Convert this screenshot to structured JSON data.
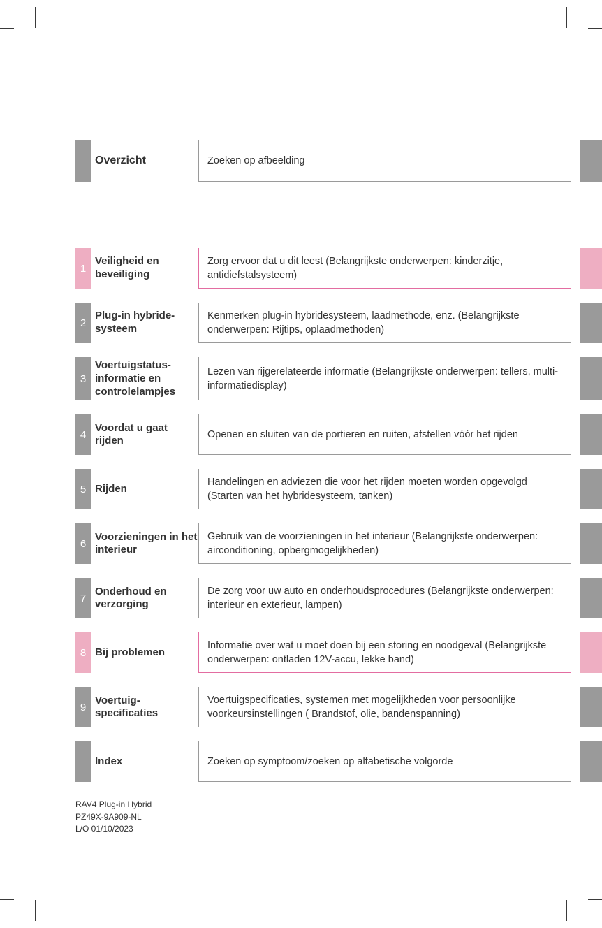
{
  "colors": {
    "gray": "#9a9a9a",
    "pink": "#eeaec2",
    "pink_border": "#e36da1",
    "text": "#333333",
    "background": "#ffffff"
  },
  "header_row": {
    "title": "Overzicht",
    "description": "Zoeken op afbeelding"
  },
  "sections": [
    {
      "num": "1",
      "color": "pink",
      "title": "Veiligheid en beveiliging",
      "description": "Zorg ervoor dat u dit leest (Belangrijkste onderwerpen: kinderzitje, antidiefstalsysteem)"
    },
    {
      "num": "2",
      "color": "gray",
      "title": "Plug-in hybride­systeem",
      "description": "Kenmerken plug-in hybridesysteem, laadmethode, enz. (Belangrijkste onderwerpen: Rijtips, oplaadmethoden)"
    },
    {
      "num": "3",
      "color": "gray",
      "title": "Voertuigstatus-informatie en controlelampjes",
      "description": "Lezen van rijgerelateerde informatie (Belangrijkste onderwerpen: tellers, multi-informatiedisplay)"
    },
    {
      "num": "4",
      "color": "gray",
      "title": "Voordat u gaat rijden",
      "description": "Openen en sluiten van de portieren en ruiten, afstellen vóór het rijden"
    },
    {
      "num": "5",
      "color": "gray",
      "title": "Rijden",
      "description": "Handelingen en adviezen die voor het rijden moeten worden opgevolgd (Starten van het hybridesysteem, tanken)"
    },
    {
      "num": "6",
      "color": "gray",
      "title": "Voorzieningen in het interieur",
      "description": "Gebruik van de voorzieningen in het interieur (Belangrijkste onderwerpen: airconditioning, opbergmogelijkheden)"
    },
    {
      "num": "7",
      "color": "gray",
      "title": "Onderhoud en verzorging",
      "description": "De zorg voor uw auto en onderhoudsprocedures (Belangrijkste onderwerpen: interieur en exterieur, lampen)"
    },
    {
      "num": "8",
      "color": "pink",
      "title": "Bij problemen",
      "description": "Informatie over wat u moet doen bij een storing en noodgeval (Belangrijkste onderwerpen: ontladen 12V-accu, lekke band)"
    },
    {
      "num": "9",
      "color": "gray",
      "title": "Voertuig-specificaties",
      "description": "Voertuigspecificaties, systemen met mogelijkheden voor persoonlijke voorkeursinstellingen ( Brandstof, olie, bandenspanning)"
    }
  ],
  "index_row": {
    "title": "Index",
    "description": "Zoeken op symptoom/zoeken op alfabetische volgorde"
  },
  "footer": {
    "line1": "RAV4 Plug-in Hybrid",
    "line2": "PZ49X-9A909-NL",
    "line3": "L/O 01/10/2023"
  }
}
